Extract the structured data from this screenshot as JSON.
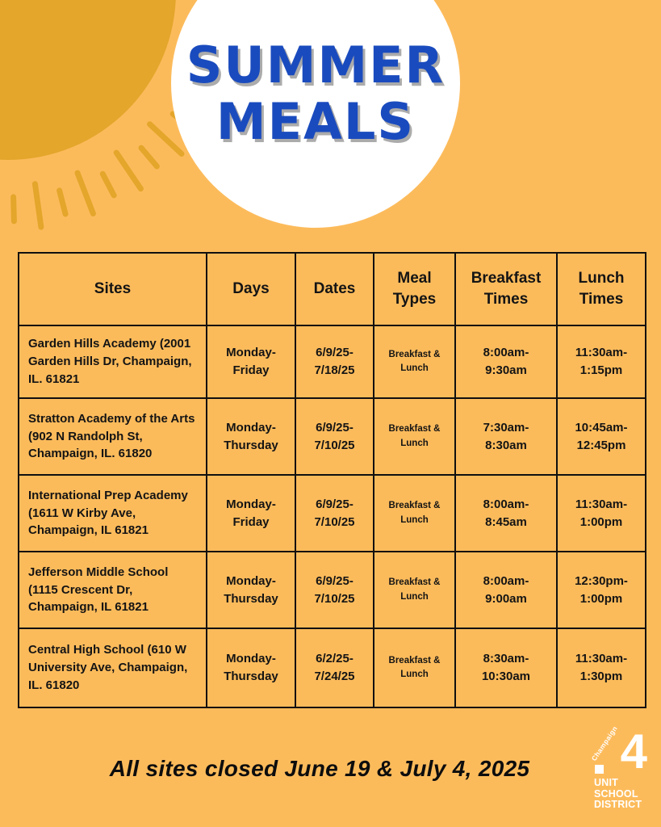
{
  "header": {
    "title_line1": "SUMMER",
    "title_line2": "MEALS"
  },
  "table": {
    "headers": [
      "Sites",
      "Days",
      "Dates",
      "Meal Types",
      "Breakfast Times",
      "Lunch Times"
    ],
    "rows": [
      {
        "site": "Garden Hills Academy (2001 Garden Hills Dr, Champaign, IL. 61821",
        "days": "Monday-Friday",
        "dates": "6/9/25-7/18/25",
        "meal_types": "Breakfast & Lunch",
        "breakfast_times": "8:00am-9:30am",
        "lunch_times": "11:30am-1:15pm"
      },
      {
        "site": "Stratton Academy of the Arts (902 N Randolph St, Champaign, IL. 61820",
        "days": "Monday-Thursday",
        "dates": "6/9/25-7/10/25",
        "meal_types": "Breakfast & Lunch",
        "breakfast_times": "7:30am-8:30am",
        "lunch_times": "10:45am-12:45pm"
      },
      {
        "site": "International Prep Academy (1611 W Kirby Ave, Champaign, IL 61821",
        "days": "Monday-Friday",
        "dates": "6/9/25-7/10/25",
        "meal_types": "Breakfast & Lunch",
        "breakfast_times": "8:00am-8:45am",
        "lunch_times": "11:30am-1:00pm"
      },
      {
        "site": "Jefferson Middle School (1115 Crescent Dr, Champaign, IL 61821",
        "days": "Monday-Thursday",
        "dates": "6/9/25-7/10/25",
        "meal_types": "Breakfast & Lunch",
        "breakfast_times": "8:00am-9:00am",
        "lunch_times": "12:30pm-1:00pm"
      },
      {
        "site": "Central High School (610 W University Ave, Champaign, IL. 61820",
        "days": "Monday-Thursday",
        "dates": "6/2/25-7/24/25",
        "meal_types": "Breakfast & Lunch",
        "breakfast_times": "8:30am-10:30am",
        "lunch_times": "11:30am-1:30pm"
      }
    ]
  },
  "footer": {
    "closure_notice": "All sites closed June 19 & July 4, 2025",
    "logo": {
      "city": "Champaign",
      "district_number": "4",
      "lines": [
        "UNIT",
        "SCHOOL",
        "DISTRICT"
      ]
    }
  },
  "colors": {
    "background": "#FCBB5B",
    "sun": "#E4A62B",
    "title_blue": "#1A4BBE",
    "text": "#141414",
    "logo_white": "#FFFFFF"
  }
}
